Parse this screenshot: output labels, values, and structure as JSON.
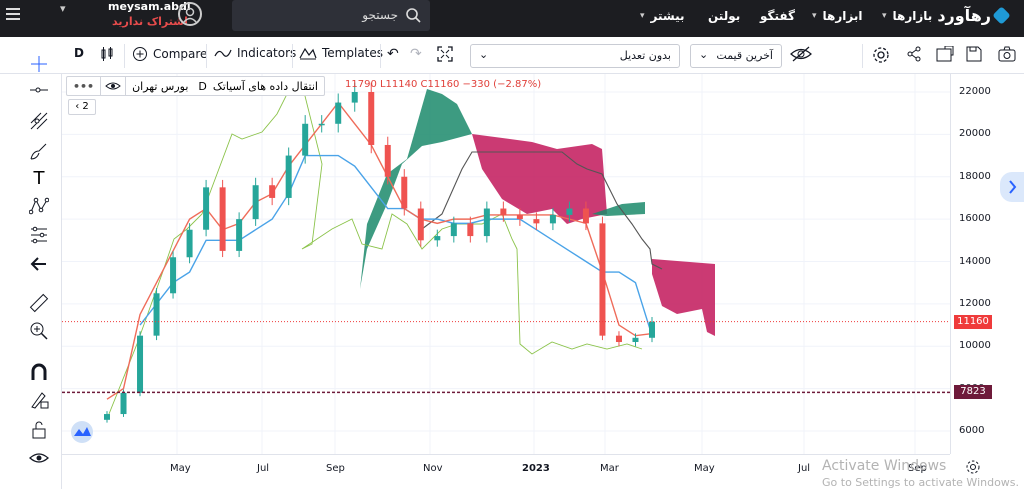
{
  "topbar": {
    "logo": "رهآورد",
    "nav": [
      {
        "label": "بازارها",
        "has_menu": true
      },
      {
        "label": "ابزارها",
        "has_menu": true
      },
      {
        "label": "گفتگو",
        "has_menu": false
      },
      {
        "label": "بولتن",
        "has_menu": false
      },
      {
        "label": "بیشتر",
        "has_menu": true
      }
    ],
    "search_label": "جستجو",
    "user_name": "meysam.abdi",
    "user_status": "اشتراک ندارید"
  },
  "toolbar": {
    "interval": "D",
    "compare": "Compare",
    "indicators": "Indicators",
    "templates": "Templates",
    "adjust_select": "بدون تعدیل",
    "price_select": "آخرین قیمت"
  },
  "legend": {
    "symbol": "انتقال داده های آسیاتک",
    "interval": "D",
    "exchange": "بورس تهران",
    "ohlc": "11790  L11140  C11160  −330 (−2.87%)",
    "collapsed_count": "2"
  },
  "price_axis": {
    "ticks": [
      "22000",
      "20000",
      "18000",
      "16000",
      "14000",
      "12000",
      "10000",
      "8000",
      "6000"
    ],
    "last_price": "11160",
    "marker_price": "7823"
  },
  "time_axis": {
    "ticks": [
      "May",
      "Jul",
      "Sep",
      "Nov",
      "2023",
      "Mar",
      "May",
      "Jul",
      "Sep"
    ]
  },
  "watermark": {
    "line1": "Activate Windows",
    "line2": "Go to Settings to activate Windows."
  },
  "colors": {
    "up": "#26a69a",
    "down": "#ef5350",
    "cloud_bull": "#1b8a6b",
    "cloud_bear": "#c2185b",
    "tenkan": "#ef6c5a",
    "kijun": "#4aa3e8",
    "chikou": "#8bc34a",
    "last_price_label": "#ef3b3b",
    "marker_label": "#6e1a3a"
  },
  "chart_data": {
    "type": "candlestick",
    "title": "",
    "x": [
      "Apr-25",
      "May-05",
      "May-15",
      "May-25",
      "Jun-05",
      "Jun-15",
      "Jun-25",
      "Jul-05",
      "Jul-15",
      "Jul-25",
      "Aug-05",
      "Aug-15",
      "Aug-25",
      "Sep-05",
      "Sep-15",
      "Sep-25",
      "Oct-05",
      "Oct-15",
      "Oct-25",
      "Nov-05",
      "Nov-15",
      "Nov-25",
      "Dec-05",
      "Dec-15",
      "Dec-25",
      "Jan-05",
      "Jan-15",
      "Jan-25",
      "Feb-05",
      "Feb-15",
      "Feb-25",
      "Mar-05",
      "Mar-15",
      "Mar-25"
    ],
    "close": [
      6800,
      7800,
      10500,
      12500,
      14200,
      15500,
      17500,
      14500,
      16000,
      17600,
      17000,
      19000,
      20500,
      20500,
      21500,
      22000,
      19500,
      18000,
      16500,
      15000,
      15200,
      15800,
      15200,
      16500,
      16200,
      16000,
      15800,
      16200,
      16500,
      15800,
      10500,
      10200,
      10400,
      11160
    ],
    "tenkan": [
      7500,
      8000,
      11500,
      13000,
      14500,
      16000,
      16500,
      15500,
      15800,
      16800,
      17200,
      18500,
      19500,
      20500,
      21500,
      20500,
      19500,
      18000,
      16500,
      16000,
      15800,
      16000,
      16000,
      16200,
      16200,
      16200,
      16200,
      16200,
      16000,
      15800,
      13500,
      11000,
      10500,
      10600
    ],
    "kijun": [
      null,
      null,
      11000,
      12000,
      13000,
      13500,
      15000,
      15000,
      15000,
      15500,
      16000,
      17200,
      19000,
      19000,
      19000,
      18500,
      17500,
      16500,
      16500,
      16000,
      16000,
      15800,
      15800,
      16000,
      16000,
      16000,
      15500,
      15000,
      14500,
      14000,
      13500,
      13500,
      13000,
      10500
    ],
    "y_range": [
      5000,
      23000
    ]
  }
}
